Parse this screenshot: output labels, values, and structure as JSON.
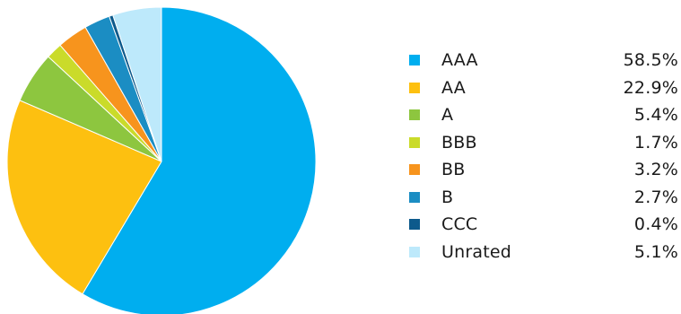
{
  "chart_data": {
    "type": "pie",
    "categories": [
      "AAA",
      "AA",
      "A",
      "BBB",
      "BB",
      "B",
      "CCC",
      "Unrated"
    ],
    "values": [
      58.5,
      22.9,
      5.4,
      1.7,
      3.2,
      2.7,
      0.4,
      5.1
    ],
    "value_labels": [
      "58.5%",
      "22.9%",
      "5.4%",
      "1.7%",
      "3.2%",
      "2.7%",
      "0.4%",
      "5.1%"
    ],
    "colors": [
      "#00aeef",
      "#fdc010",
      "#8dc63f",
      "#cadb2a",
      "#f7941d",
      "#1b8dc3",
      "#0d5a8c",
      "#bde9fb"
    ],
    "direction": "clockwise",
    "start": "12 o'clock",
    "legend_position": "right",
    "title": ""
  }
}
